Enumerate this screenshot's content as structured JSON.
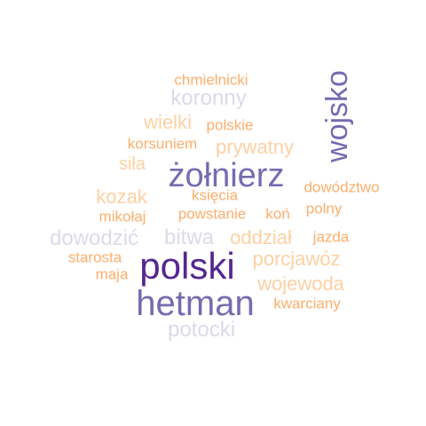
{
  "colors": {
    "darkest_purple": "#54278f",
    "medium_purple": "#756bb1",
    "light_lavender": "#dadaeb",
    "pale_peach": "#fdd0a2",
    "orange": "#fdae6b"
  },
  "words": [
    {
      "text": "polski",
      "color": "#54278f"
    },
    {
      "text": "hetman",
      "color": "#756bb1"
    },
    {
      "text": "żołnierz",
      "color": "#756bb1"
    },
    {
      "text": "wojsko",
      "color": "#756bb1"
    },
    {
      "text": "koronny",
      "color": "#dadaeb"
    },
    {
      "text": "dowodzić",
      "color": "#dadaeb"
    },
    {
      "text": "bitwa",
      "color": "#dadaeb"
    },
    {
      "text": "potocki",
      "color": "#dadaeb"
    },
    {
      "text": "wielki",
      "color": "#fdd0a2"
    },
    {
      "text": "prywatny",
      "color": "#fdd0a2"
    },
    {
      "text": "siła",
      "color": "#fdd0a2"
    },
    {
      "text": "kozak",
      "color": "#fdd0a2"
    },
    {
      "text": "oddział",
      "color": "#fdd0a2"
    },
    {
      "text": "porcjawóz",
      "color": "#fdd0a2"
    },
    {
      "text": "wojewoda",
      "color": "#fdd0a2"
    },
    {
      "text": "chmielnicki",
      "color": "#fdae6b"
    },
    {
      "text": "polskie",
      "color": "#fdae6b"
    },
    {
      "text": "korsuniem",
      "color": "#fdae6b"
    },
    {
      "text": "księcia",
      "color": "#fdae6b"
    },
    {
      "text": "dowództwo",
      "color": "#fdae6b"
    },
    {
      "text": "mikołaj",
      "color": "#fdae6b"
    },
    {
      "text": "powstanie",
      "color": "#fdae6b"
    },
    {
      "text": "koń",
      "color": "#fdae6b"
    },
    {
      "text": "polny",
      "color": "#fdae6b"
    },
    {
      "text": "jazda",
      "color": "#fdae6b"
    },
    {
      "text": "starosta",
      "color": "#fdae6b"
    },
    {
      "text": "maja",
      "color": "#fdae6b"
    },
    {
      "text": "kwarciany",
      "color": "#fdae6b"
    }
  ]
}
